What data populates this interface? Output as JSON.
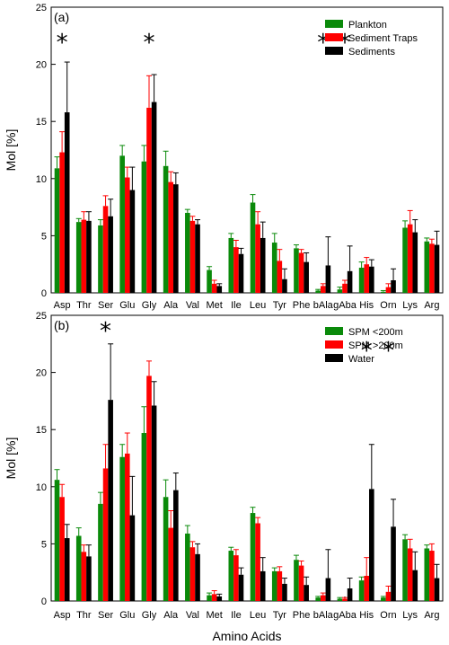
{
  "xlabel": "Amino Acids",
  "colors": [
    "#0a8a0a",
    "#ff0000",
    "#000000"
  ],
  "chart_data": [
    {
      "type": "bar",
      "panel_label": "(a)",
      "ylabel": "Mol [%]",
      "ylim": [
        0,
        25
      ],
      "yticks": [
        0,
        5,
        10,
        15,
        20,
        25
      ],
      "legend_position": "top-right",
      "categories": [
        "Asp",
        "Thr",
        "Ser",
        "Glu",
        "Gly",
        "Ala",
        "Val",
        "Met",
        "Ile",
        "Leu",
        "Tyr",
        "Phe",
        "bAla",
        "gAba",
        "His",
        "Orn",
        "Lys",
        "Arg"
      ],
      "series": [
        {
          "name": "Plankton",
          "values": [
            10.9,
            6.2,
            5.9,
            12.0,
            11.5,
            11.1,
            7.0,
            2.0,
            4.8,
            7.9,
            4.4,
            3.9,
            0.2,
            0.3,
            2.2,
            0.1,
            5.7,
            4.5
          ],
          "errors": [
            1.0,
            0.3,
            0.5,
            0.9,
            1.4,
            1.3,
            0.3,
            0.3,
            0.4,
            0.7,
            0.8,
            0.3,
            0.1,
            0.2,
            0.5,
            0.1,
            0.6,
            0.3
          ]
        },
        {
          "name": "Sediment Traps",
          "values": [
            12.3,
            6.4,
            7.6,
            10.1,
            16.2,
            9.7,
            6.3,
            0.8,
            4.0,
            6.0,
            2.8,
            3.5,
            0.6,
            0.8,
            2.5,
            0.5,
            6.0,
            4.3
          ],
          "errors": [
            1.8,
            0.7,
            0.9,
            0.9,
            2.8,
            0.9,
            0.4,
            0.3,
            0.6,
            1.1,
            1.0,
            0.3,
            0.2,
            0.3,
            0.6,
            0.3,
            1.2,
            0.4
          ]
        },
        {
          "name": "Sediments",
          "values": [
            15.8,
            6.3,
            6.7,
            9.0,
            16.7,
            9.5,
            6.0,
            0.6,
            3.4,
            4.8,
            1.2,
            2.7,
            2.4,
            1.9,
            2.3,
            1.1,
            5.3,
            4.2
          ],
          "errors": [
            4.4,
            0.8,
            1.5,
            2.0,
            2.4,
            1.0,
            0.4,
            0.2,
            0.5,
            1.4,
            0.9,
            0.8,
            2.5,
            2.2,
            0.6,
            1.0,
            1.1,
            1.2
          ]
        }
      ],
      "annotations": [
        {
          "text": "*",
          "category": "Asp"
        },
        {
          "text": "*",
          "category": "Gly"
        },
        {
          "text": "*",
          "category": "bAla"
        },
        {
          "text": "*",
          "category": "gAba"
        }
      ]
    },
    {
      "type": "bar",
      "panel_label": "(b)",
      "ylabel": "Mol [%]",
      "ylim": [
        0,
        25
      ],
      "yticks": [
        0,
        5,
        10,
        15,
        20,
        25
      ],
      "legend_position": "top-right",
      "categories": [
        "Asp",
        "Thr",
        "Ser",
        "Glu",
        "Gly",
        "Ala",
        "Val",
        "Met",
        "Ile",
        "Leu",
        "Tyr",
        "Phe",
        "bAla",
        "gAba",
        "His",
        "Orn",
        "Lys",
        "Arg"
      ],
      "series": [
        {
          "name": "SPM <200m",
          "values": [
            10.6,
            5.7,
            8.5,
            12.6,
            14.7,
            9.1,
            5.9,
            0.5,
            4.4,
            7.7,
            2.6,
            3.6,
            0.3,
            0.2,
            1.8,
            0.3,
            5.4,
            4.6
          ],
          "errors": [
            0.9,
            0.7,
            1.0,
            1.1,
            2.3,
            1.5,
            0.7,
            0.2,
            0.3,
            0.5,
            0.3,
            0.4,
            0.1,
            0.1,
            0.3,
            0.1,
            0.4,
            0.3
          ]
        },
        {
          "name": "SPM >200m",
          "values": [
            9.1,
            4.3,
            11.6,
            12.9,
            19.7,
            6.4,
            4.7,
            0.6,
            4.0,
            6.8,
            2.6,
            3.1,
            0.5,
            0.2,
            2.2,
            0.8,
            4.6,
            4.4
          ],
          "errors": [
            1.1,
            0.6,
            2.1,
            1.8,
            1.3,
            1.5,
            0.5,
            0.3,
            0.5,
            0.5,
            0.4,
            0.4,
            0.2,
            0.1,
            1.6,
            0.5,
            0.8,
            0.6
          ]
        },
        {
          "name": "Water",
          "values": [
            5.5,
            3.9,
            17.6,
            7.5,
            17.1,
            9.7,
            4.1,
            0.4,
            2.3,
            2.6,
            1.5,
            1.4,
            2.0,
            1.1,
            9.8,
            6.5,
            2.7,
            2.0
          ],
          "errors": [
            1.2,
            1.0,
            4.9,
            3.4,
            2.1,
            1.5,
            0.9,
            0.2,
            0.6,
            1.2,
            0.5,
            0.7,
            2.5,
            0.9,
            3.9,
            2.4,
            1.6,
            1.2
          ]
        }
      ],
      "annotations": [
        {
          "text": "*",
          "category": "Ser"
        },
        {
          "text": "*",
          "category": "His"
        },
        {
          "text": "*",
          "category": "Orn"
        }
      ]
    }
  ]
}
